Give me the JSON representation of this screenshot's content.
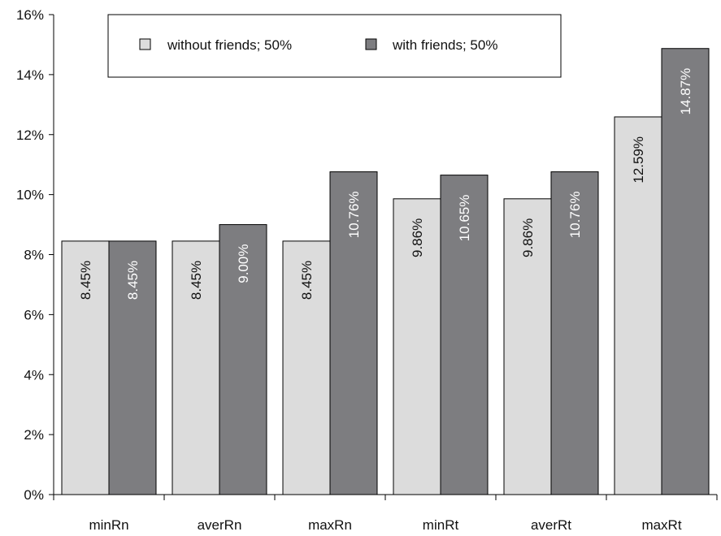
{
  "chart_data": {
    "type": "bar",
    "categories": [
      "minRn",
      "averRn",
      "maxRn",
      "minRt",
      "averRt",
      "maxRt"
    ],
    "series": [
      {
        "name": "without friends; 50%",
        "values": [
          8.45,
          8.45,
          8.45,
          9.86,
          9.86,
          12.59
        ],
        "labels": [
          "8.45%",
          "8.45%",
          "8.45%",
          "9.86%",
          "9.86%",
          "12.59%"
        ],
        "color": "#dcdcdc"
      },
      {
        "name": "with friends; 50%",
        "values": [
          8.45,
          9.0,
          10.76,
          10.65,
          10.76,
          14.87
        ],
        "labels": [
          "8.45%",
          "9.00%",
          "10.76%",
          "10.65%",
          "10.76%",
          "14.87%"
        ],
        "color": "#7d7d80"
      }
    ],
    "ylim": [
      0,
      16
    ],
    "yticks": [
      "0%",
      "2%",
      "4%",
      "6%",
      "8%",
      "10%",
      "12%",
      "14%",
      "16%"
    ],
    "legend_position": "top",
    "grid": false,
    "data_label_colors": {
      "light": "#111111",
      "dark": "#ffffff"
    }
  }
}
